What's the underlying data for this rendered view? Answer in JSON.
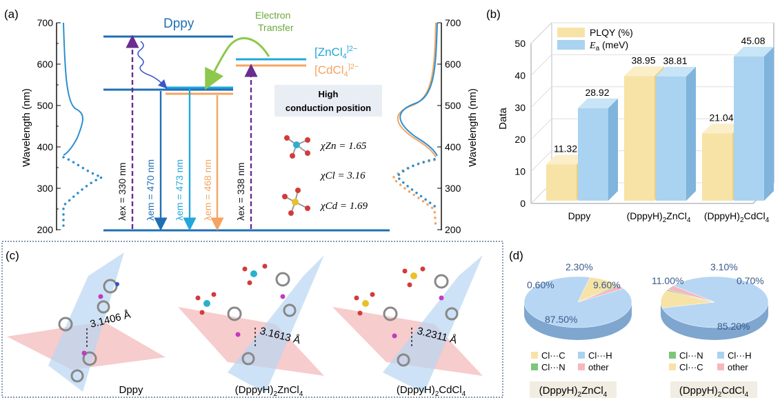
{
  "panel_a": {
    "label": "(a)",
    "axis_title": "Wavelength (nm)",
    "ticks": [
      "700",
      "600",
      "500",
      "400",
      "300",
      "200"
    ],
    "dppy_label": "Dppy",
    "et_line1": "Electron",
    "et_line2": "Transfer",
    "zn_label": "[ZnCl",
    "zn_sub": "4",
    "zn_sup": "]2−",
    "cd_label": "[CdCl",
    "cd_sub": "4",
    "cd_sup": "]2−",
    "box_line1": "High",
    "box_line2": "conduction position",
    "ex1": "λex = 330 nm",
    "em1": "λem = 470 nm",
    "em2": "λem = 473 nm",
    "em3": "λem = 468 nm",
    "ex2": "λex = 338 nm",
    "chi_zn": "χZn = 1.65",
    "chi_cl": "χCl = 3.16",
    "chi_cd": "χCd = 1.69",
    "colors": {
      "blue": "#1f6fb5",
      "cyan": "#22a7dc",
      "orange": "#f4a460",
      "purple": "#6a2c91",
      "green": "#8cc84b"
    }
  },
  "panel_b": {
    "label": "(b)",
    "chart_data": {
      "type": "bar",
      "categories": [
        "Dppy",
        "(DppyH)2ZnCl4",
        "(DppyH)2CdCl4"
      ],
      "series": [
        {
          "name": "PLQY (%)",
          "values": [
            11.32,
            38.95,
            21.04
          ],
          "color": "#f7e3a6"
        },
        {
          "name": "Ea (meV)",
          "values": [
            28.92,
            38.81,
            45.08
          ],
          "color": "#a9d3f0"
        }
      ],
      "value_labels": [
        [
          "11.32",
          "38.95",
          "21.04"
        ],
        [
          "28.92",
          "38.81",
          "45.08"
        ]
      ],
      "ylabel": "Data",
      "ylim": [
        0,
        50
      ],
      "yticks": [
        "0",
        "10",
        "20",
        "30",
        "40",
        "50"
      ],
      "legend": "top-left"
    }
  },
  "panel_c": {
    "label": "(c)",
    "distances": [
      "3.1406 Å",
      "3.1613 Å",
      "3.2311 Å"
    ],
    "captions": [
      "Dppy",
      "(DppyH)2ZnCl4",
      "(DppyH)2CdCl4"
    ]
  },
  "panel_d": {
    "label": "(d)",
    "chart_data": [
      {
        "type": "pie",
        "labels": [
          "Cl···H",
          "Cl···C",
          "Cl···N",
          "other"
        ],
        "values": [
          87.5,
          9.6,
          0.6,
          2.3
        ],
        "pct_labels": [
          "87.50%",
          "9.60%",
          "0.60%",
          "2.30%"
        ],
        "caption": "(DppyH)2ZnCl4"
      },
      {
        "type": "pie",
        "labels": [
          "Cl···H",
          "Cl···C",
          "Cl···N",
          "other"
        ],
        "values": [
          85.2,
          11.0,
          0.7,
          3.1
        ],
        "pct_labels": [
          "85.20%",
          "11.00%",
          "0.70%",
          "3.10%"
        ],
        "caption": "(DppyH)2CdCl4"
      }
    ],
    "legend": [
      "Cl···C",
      "Cl···H",
      "Cl···N",
      "other"
    ],
    "legend2": [
      "Cl···N",
      "Cl···H",
      "Cl···C",
      "other"
    ]
  }
}
